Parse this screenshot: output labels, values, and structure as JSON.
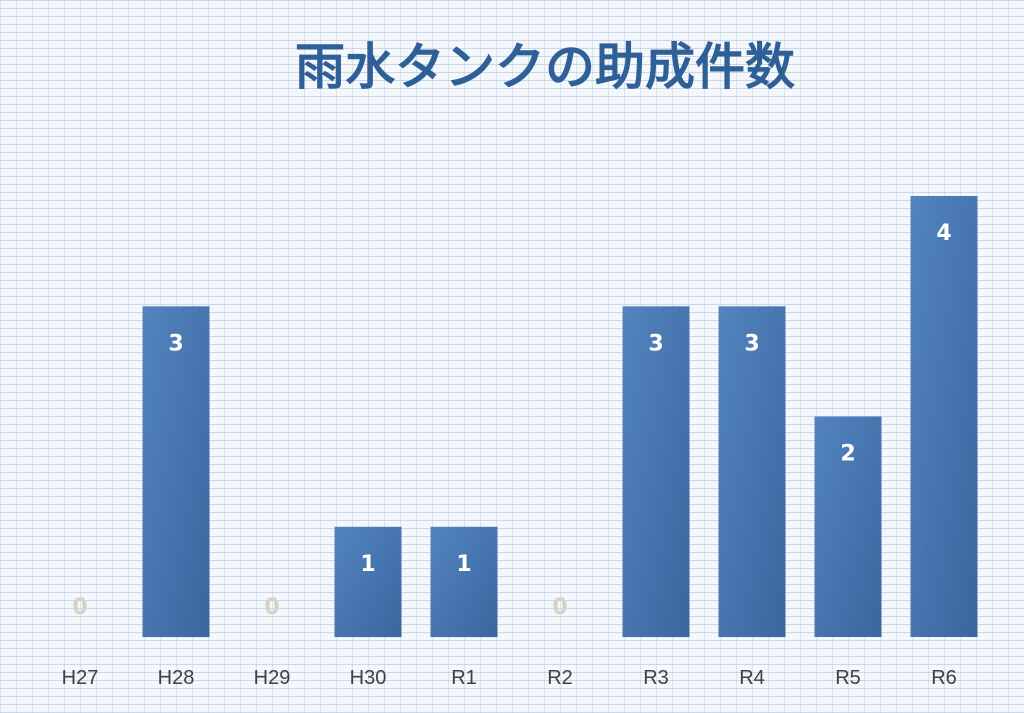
{
  "chart_data": {
    "type": "bar",
    "title": "雨水タンクの助成件数",
    "xlabel": "",
    "ylabel": "",
    "categories": [
      "H27",
      "H28",
      "H29",
      "H30",
      "R1",
      "R2",
      "R3",
      "R4",
      "R5",
      "R6"
    ],
    "values": [
      0,
      3,
      0,
      1,
      1,
      0,
      3,
      3,
      2,
      4
    ],
    "ylim": [
      0,
      4
    ],
    "grid": false,
    "legend": "none",
    "data_labels": true,
    "colors": {
      "title": "#2e5f96",
      "bar_light": "#5384c0",
      "bar_dark": "#3a669e",
      "label_on_bar": "#ffffff",
      "label_zero": "#d6d2c4",
      "category_text": "#404040"
    }
  }
}
